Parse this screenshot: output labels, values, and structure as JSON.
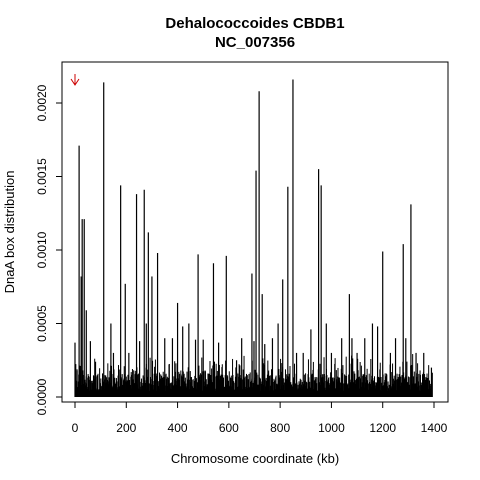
{
  "chart_data": {
    "type": "bar",
    "title": "Dehalococcoides CBDB1",
    "subtitle": "NC_007356",
    "xlabel": "Chromosome coordinate (kb)",
    "ylabel": "DnaA box distribution",
    "xlim": [
      0,
      1400
    ],
    "ylim": [
      0,
      0.0022
    ],
    "x_ticks": [
      "0",
      "200",
      "400",
      "600",
      "800",
      "1000",
      "1200",
      "1400"
    ],
    "y_ticks": [
      "0.0000",
      "0.0005",
      "0.0010",
      "0.0015",
      "0.0020"
    ],
    "arrow_marker": {
      "x": 0,
      "color": "#cc0000"
    },
    "spikes": [
      [
        0,
        0.00037
      ],
      [
        8,
        0.00018
      ],
      [
        16,
        0.00171
      ],
      [
        24,
        0.00082
      ],
      [
        28,
        0.00121
      ],
      [
        36,
        0.00121
      ],
      [
        44,
        0.00059
      ],
      [
        60,
        0.00038
      ],
      [
        80,
        0.00024
      ],
      [
        112,
        0.00214
      ],
      [
        140,
        0.0005
      ],
      [
        150,
        0.0003
      ],
      [
        178,
        0.00144
      ],
      [
        196,
        0.00077
      ],
      [
        210,
        0.0003
      ],
      [
        240,
        0.00138
      ],
      [
        252,
        0.00038
      ],
      [
        270,
        0.00141
      ],
      [
        278,
        0.0005
      ],
      [
        286,
        0.00112
      ],
      [
        300,
        0.00082
      ],
      [
        322,
        0.00098
      ],
      [
        350,
        0.0004
      ],
      [
        380,
        0.0004
      ],
      [
        400,
        0.00064
      ],
      [
        420,
        0.00048
      ],
      [
        444,
        0.0005
      ],
      [
        470,
        0.00039
      ],
      [
        480,
        0.00097
      ],
      [
        500,
        0.00039
      ],
      [
        540,
        0.00091
      ],
      [
        560,
        0.00037
      ],
      [
        590,
        0.00096
      ],
      [
        630,
        0.00025
      ],
      [
        650,
        0.0004
      ],
      [
        690,
        0.00084
      ],
      [
        698,
        0.00038
      ],
      [
        706,
        0.00154
      ],
      [
        718,
        0.00208
      ],
      [
        730,
        0.0007
      ],
      [
        740,
        0.00036
      ],
      [
        770,
        0.0004
      ],
      [
        792,
        0.0005
      ],
      [
        810,
        0.0008
      ],
      [
        830,
        0.00143
      ],
      [
        850,
        0.00216
      ],
      [
        864,
        0.0003
      ],
      [
        890,
        0.0003
      ],
      [
        920,
        0.00046
      ],
      [
        950,
        0.00155
      ],
      [
        960,
        0.00144
      ],
      [
        980,
        0.0005
      ],
      [
        1000,
        0.0003
      ],
      [
        1040,
        0.0004
      ],
      [
        1070,
        0.0007
      ],
      [
        1080,
        0.0004
      ],
      [
        1100,
        0.0003
      ],
      [
        1130,
        0.0004
      ],
      [
        1160,
        0.0005
      ],
      [
        1180,
        0.00048
      ],
      [
        1200,
        0.00099
      ],
      [
        1230,
        0.0003
      ],
      [
        1250,
        0.0004
      ],
      [
        1280,
        0.00104
      ],
      [
        1290,
        0.0004
      ],
      [
        1310,
        0.00131
      ],
      [
        1330,
        0.0003
      ],
      [
        1360,
        0.0003
      ],
      [
        1390,
        0.0002
      ]
    ]
  }
}
